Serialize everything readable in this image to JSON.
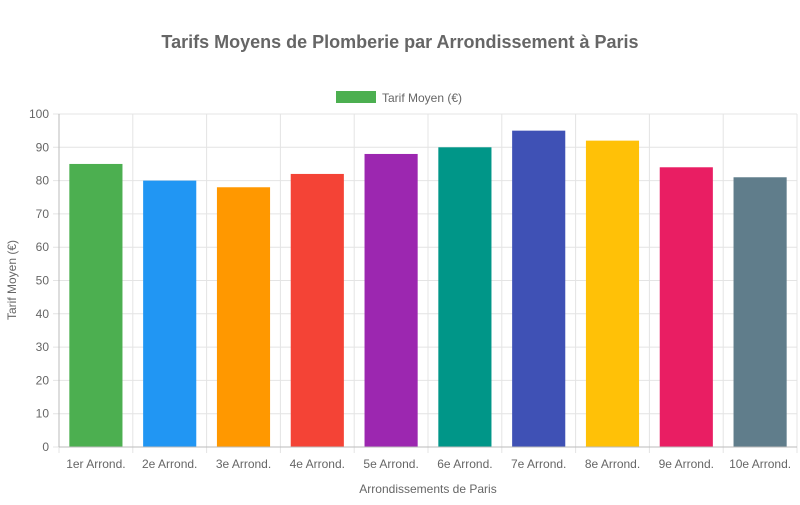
{
  "chart_data": {
    "type": "bar",
    "title": "Tarifs Moyens de Plomberie par Arrondissement à Paris",
    "xlabel": "Arrondissements de Paris",
    "ylabel": "Tarif Moyen (€)",
    "ylim": [
      0,
      100
    ],
    "yticks": [
      0,
      10,
      20,
      30,
      40,
      50,
      60,
      70,
      80,
      90,
      100
    ],
    "grid": true,
    "legend_position": "top",
    "categories": [
      "1er Arrond.",
      "2e Arrond.",
      "3e Arrond.",
      "4e Arrond.",
      "5e Arrond.",
      "6e Arrond.",
      "7e Arrond.",
      "8e Arrond.",
      "9e Arrond.",
      "10e Arrond."
    ],
    "series": [
      {
        "name": "Tarif Moyen (€)",
        "values": [
          85,
          80,
          78,
          82,
          88,
          90,
          95,
          92,
          84,
          81
        ],
        "colors": [
          "#4CAF50",
          "#2196F3",
          "#FF9800",
          "#F44336",
          "#9C27B0",
          "#009688",
          "#3F51B5",
          "#FFC107",
          "#E91E63",
          "#607D8B"
        ]
      }
    ]
  }
}
